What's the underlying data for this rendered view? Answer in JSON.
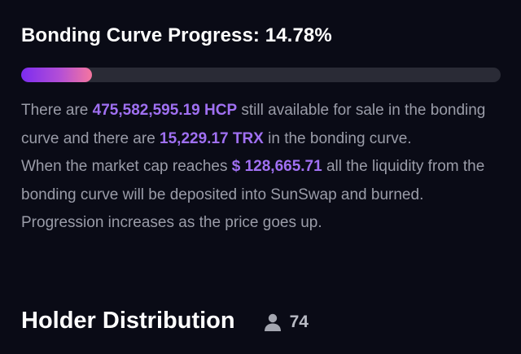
{
  "bonding": {
    "title_prefix": "Bonding Curve Progress: ",
    "progress_label": "14.78%",
    "progress_value": 14.78
  },
  "description": {
    "p1_part1": "There are ",
    "hcp_amount": "475,582,595.19 HCP",
    "p1_part2": " still available for sale in the bonding curve and there are ",
    "trx_amount": "15,229.17 TRX",
    "p1_part3": " in the bonding curve.",
    "p2_part1": "When the market cap reaches ",
    "market_cap": "$ 128,665.71",
    "p2_part2": " all the liquidity from the bonding curve will be deposited into SunSwap and burned. Progression increases as the price goes up."
  },
  "holders": {
    "title": "Holder Distribution",
    "icon": "person-icon",
    "count": "74"
  },
  "colors": {
    "background": "#0a0b16",
    "highlight": "#a070f2",
    "progress_start": "#7c2cf0",
    "progress_end": "#f5769f",
    "track": "#2a2b36"
  }
}
